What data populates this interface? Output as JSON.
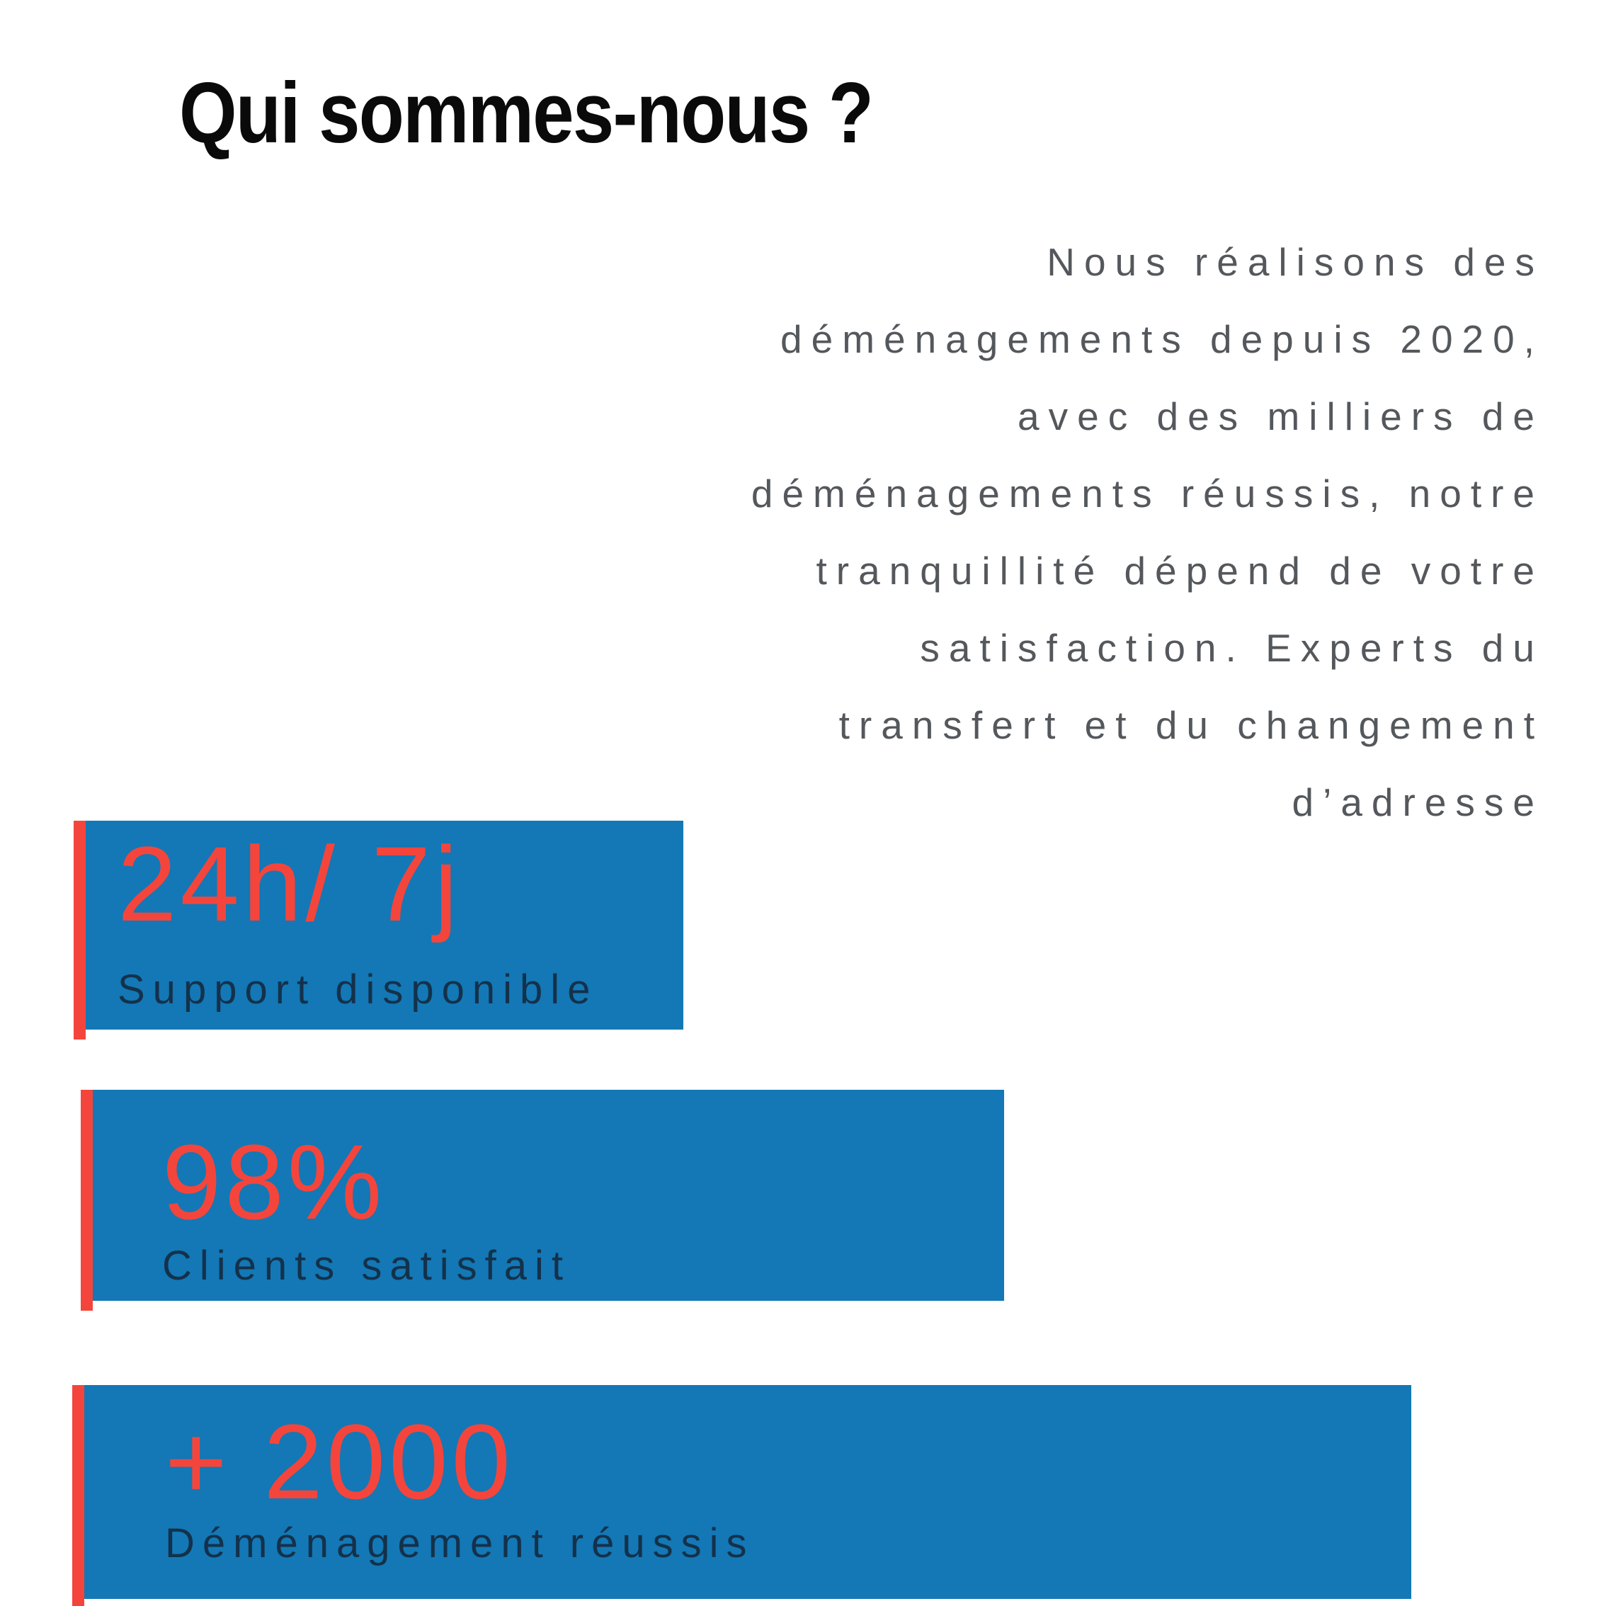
{
  "section": {
    "title": "Qui sommes-nous ?",
    "intro": {
      "lines": [
        "Nous réalisons des",
        "déménagements depuis 2020,",
        "avec des milliers de",
        "déménagements réussis, notre",
        "tranquillité dépend de votre",
        "satisfaction. Experts du",
        "transfert et du changement",
        "d’adresse"
      ]
    },
    "stats": [
      {
        "value": "24h/ 7j",
        "label": "Support disponible"
      },
      {
        "value": "98%",
        "label": "Clients satisfait"
      },
      {
        "value": "+ 2000",
        "label": "Déménagement réussis"
      }
    ],
    "colors": {
      "accent_blue": "#1378b5",
      "accent_red": "#f4453c",
      "label_navy": "#14314b",
      "paragraph_grey": "#54585c",
      "heading_black": "#0a0a0a",
      "background": "#ffffff"
    }
  }
}
